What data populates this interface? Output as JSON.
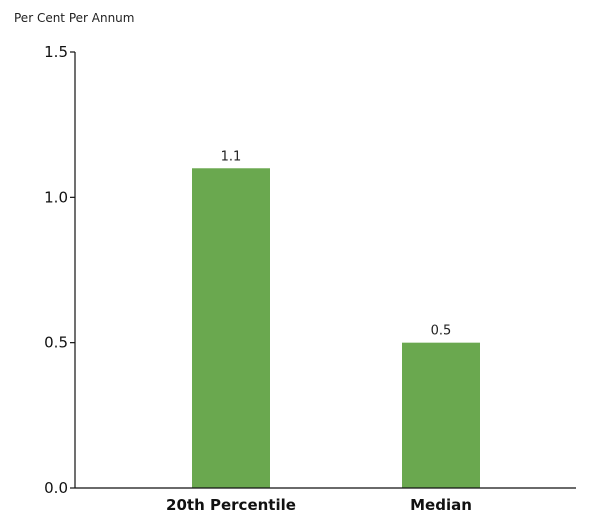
{
  "chart_data": {
    "type": "bar",
    "title": "",
    "ylabel": "Per Cent Per Annum",
    "xlabel": "",
    "categories": [
      "20th Percentile",
      "Median"
    ],
    "values": [
      1.1,
      0.5
    ],
    "data_labels": [
      "1.1",
      "0.5"
    ],
    "ylim": [
      0,
      1.5
    ],
    "yticks": [
      0,
      0.5,
      1.0,
      1.5
    ],
    "ytick_labels": [
      "0.0",
      "0.5",
      "1.0",
      "1.5"
    ],
    "bar_color": "#6aa84f",
    "grid": false,
    "legend": "none"
  }
}
